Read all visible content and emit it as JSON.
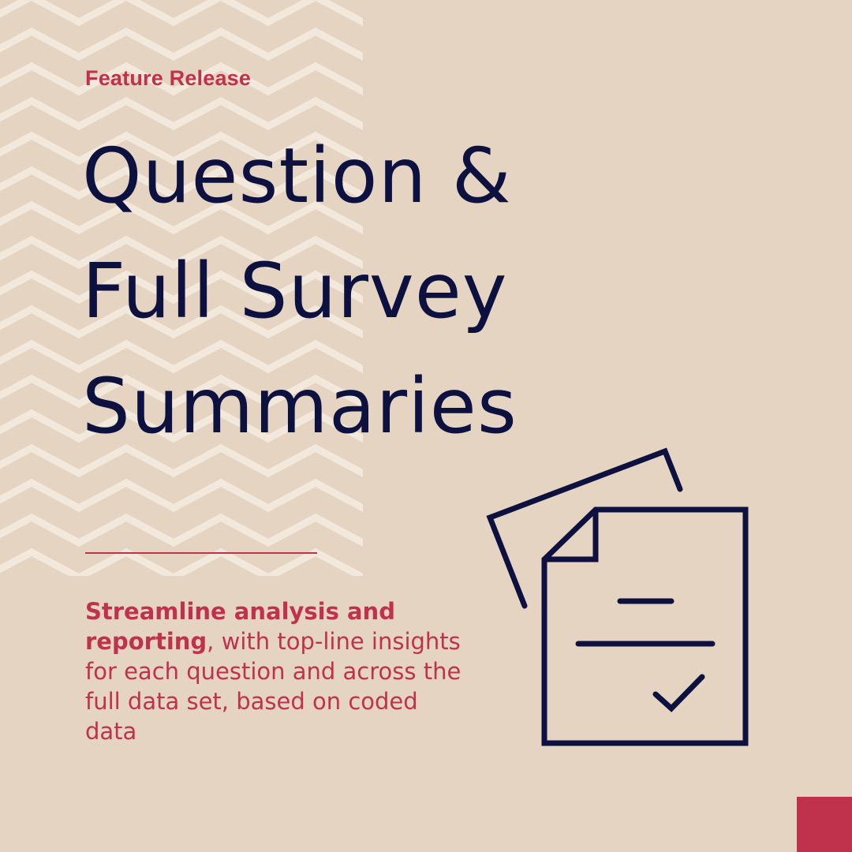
{
  "header": {
    "eyebrow": "Feature Release"
  },
  "headline": {
    "lines": [
      "Question &",
      "Full Survey",
      "Summaries"
    ]
  },
  "description": {
    "bold": "Streamline analysis and reporting",
    "rest": ", with top-line insights for each question and across the full data set, based on coded data"
  },
  "icons": {
    "illustration": "document-check-icon",
    "pattern": "zigzag-pattern"
  },
  "colors": {
    "background": "#e6d4c3",
    "accent": "#c0324b",
    "ink": "#0d1140",
    "pattern": "#f1e6da"
  }
}
